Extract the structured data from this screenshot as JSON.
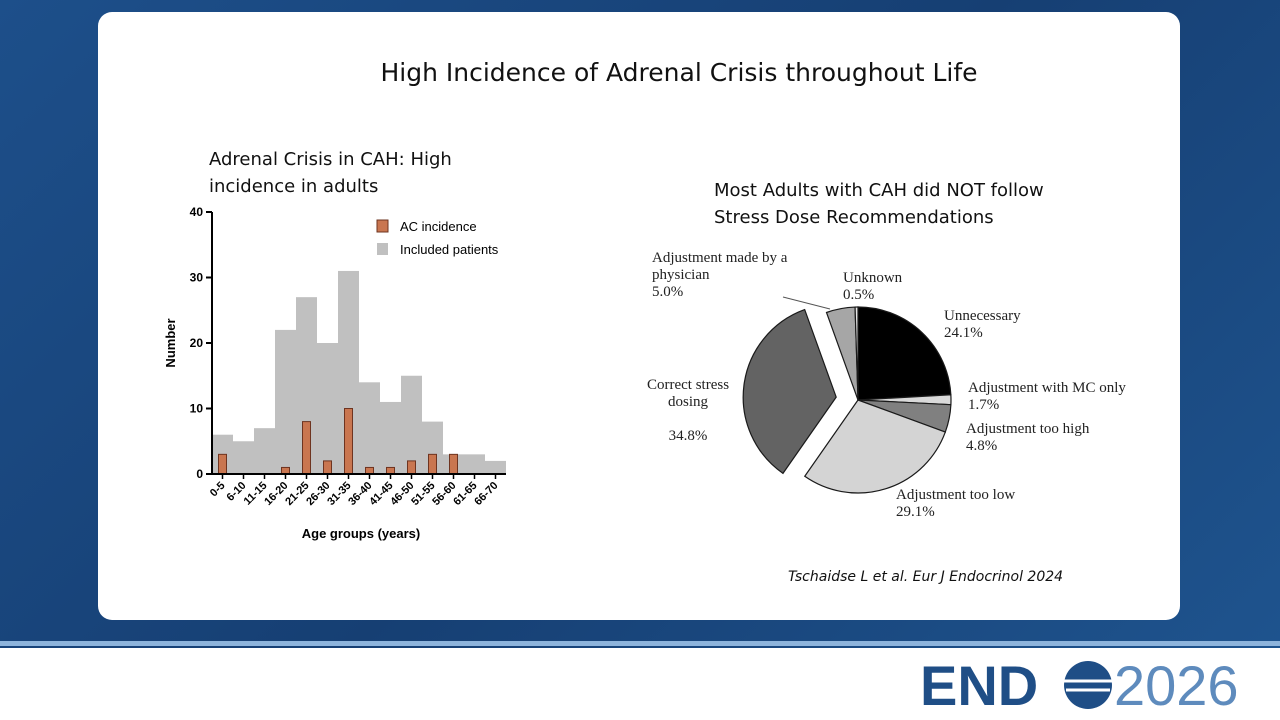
{
  "slide": {
    "title": "High Incidence of Adrenal Crisis throughout Life",
    "citation": "Tschaidse L et al. Eur J Endocrinol 2024",
    "logo": {
      "left": "END",
      "right": "2026"
    }
  },
  "chart_data": [
    {
      "type": "bar",
      "title": "Adrenal Crisis in CAH: High incidence in adults",
      "x_label": "Age groups (years)",
      "y_label": "Number",
      "categories": [
        "0-5",
        "6-10",
        "11-15",
        "16-20",
        "21-25",
        "26-30",
        "31-35",
        "36-40",
        "41-45",
        "46-50",
        "51-55",
        "56-60",
        "61-65",
        "66-70"
      ],
      "series": [
        {
          "name": "AC incidence",
          "color": "#c97650",
          "values": [
            3,
            0,
            0,
            1,
            8,
            2,
            10,
            1,
            1,
            2,
            3,
            3,
            0,
            0
          ]
        },
        {
          "name": "Included patients",
          "color": "#c0c0c0",
          "values": [
            6,
            5,
            7,
            22,
            27,
            20,
            31,
            14,
            11,
            15,
            8,
            3,
            3,
            2
          ]
        }
      ],
      "ylim": [
        0,
        40
      ],
      "yticks": [
        0,
        10,
        20,
        30,
        40
      ],
      "legend": "upper right"
    },
    {
      "type": "pie",
      "title": "Most Adults with CAH did NOT follow Stress Dose Recommendations",
      "categories": [
        "Unnecessary",
        "Adjustment with MC only",
        "Adjustment too high",
        "Adjustment too low",
        "Correct stress dosing",
        "Adjustment made by a physician",
        "Unknown"
      ],
      "values": [
        24.1,
        1.7,
        4.8,
        29.1,
        34.8,
        5.0,
        0.5
      ],
      "value_labels": [
        "24.1%",
        "1.7%",
        "4.8%",
        "29.1%",
        "34.8%",
        "5.0%",
        "0.5%"
      ],
      "colors": [
        "#000000",
        "#d9d9d9",
        "#808080",
        "#d4d4d4",
        "#636363",
        "#a6a6a6",
        "#e6e6e6"
      ]
    }
  ]
}
